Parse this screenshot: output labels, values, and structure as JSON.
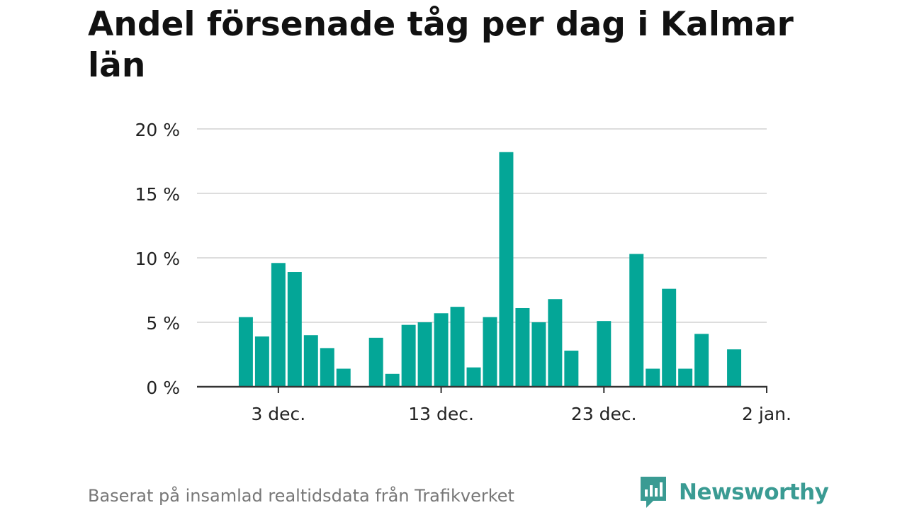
{
  "title": "Andel försenade tåg per dag i Kalmar län",
  "footer": {
    "source": "Baserat på insamlad realtidsdata från Trafikverket",
    "brand": "Newsworthy"
  },
  "colors": {
    "bar": "#04a697",
    "grid": "#dddddd",
    "axis": "#333333",
    "brand": "#3a9b93"
  },
  "chart_data": {
    "type": "bar",
    "x_type": "date",
    "x": [
      "2023-12-01",
      "2023-12-02",
      "2023-12-03",
      "2023-12-04",
      "2023-12-05",
      "2023-12-06",
      "2023-12-07",
      "2023-12-08",
      "2023-12-09",
      "2023-12-10",
      "2023-12-11",
      "2023-12-12",
      "2023-12-13",
      "2023-12-14",
      "2023-12-15",
      "2023-12-16",
      "2023-12-17",
      "2023-12-18",
      "2023-12-19",
      "2023-12-20",
      "2023-12-21",
      "2023-12-22",
      "2023-12-23",
      "2023-12-24",
      "2023-12-25",
      "2023-12-26",
      "2023-12-27",
      "2023-12-28",
      "2023-12-29",
      "2023-12-30",
      "2023-12-31",
      "2024-01-01"
    ],
    "values": [
      5.4,
      3.9,
      9.6,
      8.9,
      4.0,
      3.0,
      1.4,
      null,
      3.8,
      1.0,
      4.8,
      5.0,
      5.7,
      6.2,
      1.5,
      5.4,
      18.2,
      6.1,
      5.0,
      6.8,
      2.8,
      null,
      5.1,
      null,
      10.3,
      1.4,
      7.6,
      1.4,
      4.1,
      null,
      2.9,
      null
    ],
    "y_unit": "%",
    "ylim": [
      0,
      20
    ],
    "y_ticks": [
      0,
      5,
      10,
      15,
      20
    ],
    "y_tick_labels": [
      "0 %",
      "5 %",
      "10 %",
      "15 %",
      "20 %"
    ],
    "x_ticks": [
      "2023-12-03",
      "2023-12-13",
      "2023-12-23",
      "2024-01-02"
    ],
    "x_tick_labels": [
      "3 dec.",
      "13 dec.",
      "23 dec.",
      "2 jan."
    ],
    "xlim": [
      "2023-11-28",
      "2024-01-02"
    ],
    "grid": true,
    "legend": false
  }
}
